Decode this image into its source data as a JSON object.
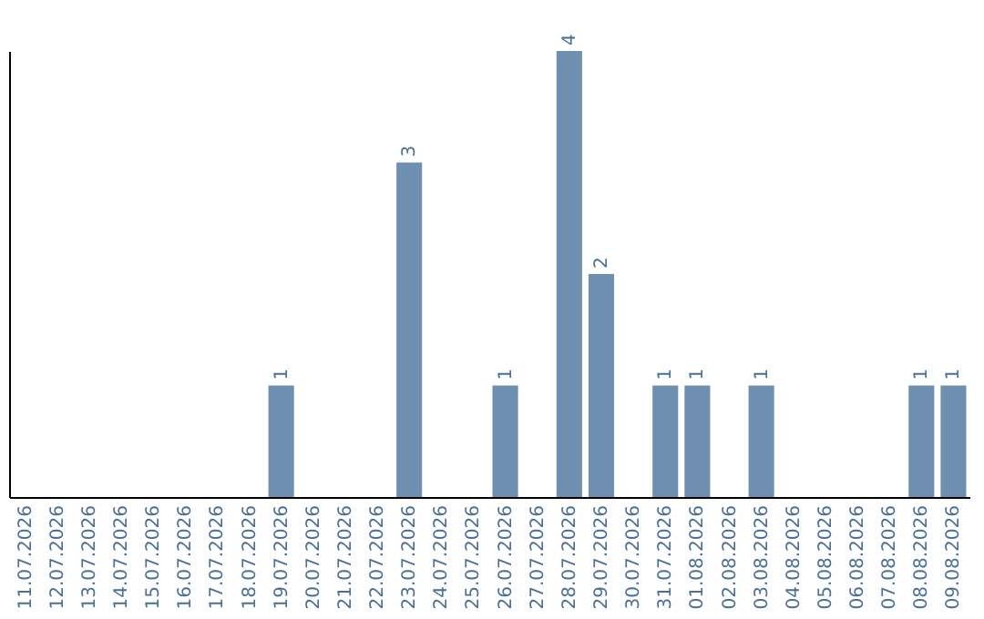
{
  "chart_data": {
    "type": "bar",
    "categories": [
      "11.07.2026",
      "12.07.2026",
      "13.07.2026",
      "14.07.2026",
      "15.07.2026",
      "16.07.2026",
      "17.07.2026",
      "18.07.2026",
      "19.07.2026",
      "20.07.2026",
      "21.07.2026",
      "22.07.2026",
      "23.07.2026",
      "24.07.2026",
      "25.07.2026",
      "26.07.2026",
      "27.07.2026",
      "28.07.2026",
      "29.07.2026",
      "30.07.2026",
      "31.07.2026",
      "01.08.2026",
      "02.08.2026",
      "03.08.2026",
      "04.08.2026",
      "05.08.2026",
      "06.08.2026",
      "07.08.2026",
      "08.08.2026",
      "09.08.2026"
    ],
    "values": [
      0,
      0,
      0,
      0,
      0,
      0,
      0,
      0,
      1,
      0,
      0,
      0,
      3,
      0,
      0,
      1,
      0,
      4,
      2,
      0,
      1,
      1,
      0,
      1,
      0,
      0,
      0,
      0,
      1,
      1
    ],
    "value_labels": [
      null,
      null,
      null,
      null,
      null,
      null,
      null,
      null,
      "1",
      null,
      null,
      null,
      "3",
      null,
      null,
      "1",
      null,
      "4",
      "2",
      null,
      "1",
      "1",
      null,
      "1",
      null,
      null,
      null,
      null,
      "1",
      "1"
    ],
    "color": "#6f8fb0",
    "tick_labels": "x",
    "grid": false
  }
}
